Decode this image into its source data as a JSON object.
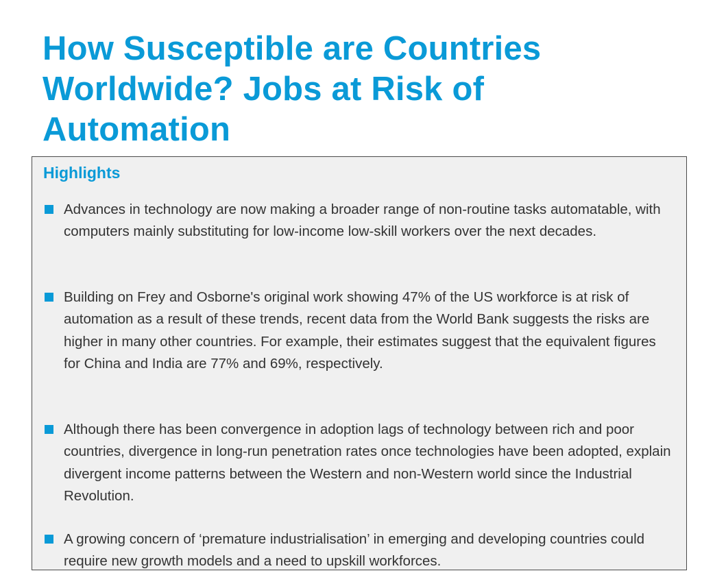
{
  "title": "How Susceptible are Countries Worldwide? Jobs at Risk of Automation",
  "highlights": {
    "heading": "Highlights",
    "items": [
      "Advances in technology are now making a broader range of non-routine tasks automatable, with computers mainly substituting for low-income low-skill workers over the next decades.",
      "Building on Frey and Osborne's original work showing 47% of the US workforce is at risk of automation as a result of these trends, recent data from the World Bank suggests the risks are higher in many other countries. For example, their estimates suggest that the equivalent figures for China and India are 77% and 69%, respectively.",
      "Although there has been convergence in adoption lags of technology between rich and poor countries, divergence in long-run penetration rates once technologies have been adopted, explain divergent income patterns between the Western and non-Western world since the Industrial Revolution.",
      "A growing concern of ‘premature industrialisation’ in emerging and developing countries could require new growth models and a need to upskill workforces."
    ]
  },
  "colors": {
    "accent": "#0a9ad7",
    "box_background": "#f0f0f0",
    "body_text": "#333333"
  }
}
